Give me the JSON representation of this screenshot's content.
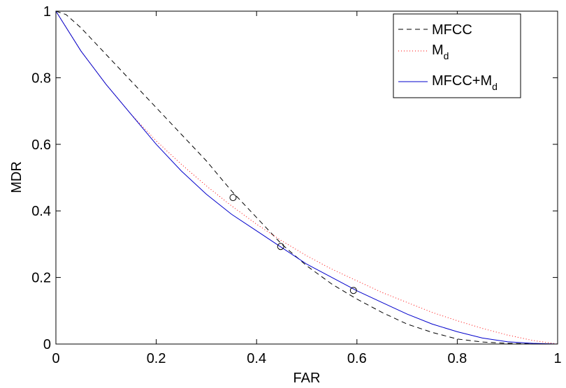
{
  "chart_data": {
    "type": "line",
    "xlabel": "FAR",
    "ylabel": "MDR",
    "xlim": [
      0,
      1
    ],
    "ylim": [
      0,
      1
    ],
    "xticks": [
      "0",
      "0.2",
      "0.4",
      "0.6",
      "0.8",
      "1"
    ],
    "yticks": [
      "0",
      "0.2",
      "0.4",
      "0.6",
      "0.8",
      "1"
    ],
    "legend_position": "top-right",
    "legend": [
      {
        "base": "MFCC",
        "sub": "",
        "suffix": ""
      },
      {
        "base": "M",
        "sub": "d",
        "suffix": ""
      },
      {
        "base": "MFCC+M",
        "sub": "d",
        "suffix": ""
      }
    ],
    "series": [
      {
        "name": "MFCC",
        "color": "#000000",
        "style": "dashed",
        "x": [
          0,
          0.02,
          0.05,
          0.1,
          0.15,
          0.2,
          0.25,
          0.3,
          0.35,
          0.4,
          0.45,
          0.5,
          0.55,
          0.6,
          0.65,
          0.7,
          0.75,
          0.8,
          0.85,
          0.9,
          0.95,
          1.0
        ],
        "y": [
          1.0,
          0.99,
          0.95,
          0.87,
          0.79,
          0.71,
          0.63,
          0.55,
          0.46,
          0.38,
          0.3,
          0.235,
          0.18,
          0.135,
          0.095,
          0.06,
          0.035,
          0.015,
          0.006,
          0.002,
          0.0005,
          0
        ]
      },
      {
        "name": "Md",
        "color": "#ff0000",
        "style": "dotted",
        "x": [
          0,
          0.05,
          0.1,
          0.15,
          0.2,
          0.25,
          0.3,
          0.35,
          0.4,
          0.45,
          0.5,
          0.55,
          0.6,
          0.65,
          0.7,
          0.75,
          0.8,
          0.85,
          0.9,
          0.95,
          1.0
        ],
        "y": [
          1.0,
          0.88,
          0.78,
          0.69,
          0.61,
          0.54,
          0.475,
          0.415,
          0.36,
          0.31,
          0.265,
          0.225,
          0.19,
          0.155,
          0.125,
          0.095,
          0.07,
          0.047,
          0.027,
          0.011,
          0
        ]
      },
      {
        "name": "MFCC+Md",
        "color": "#0000cc",
        "style": "solid",
        "x": [
          0,
          0.05,
          0.1,
          0.15,
          0.2,
          0.25,
          0.3,
          0.35,
          0.4,
          0.45,
          0.5,
          0.55,
          0.6,
          0.65,
          0.7,
          0.75,
          0.8,
          0.85,
          0.9,
          0.95,
          1.0
        ],
        "y": [
          1.0,
          0.88,
          0.78,
          0.69,
          0.6,
          0.52,
          0.45,
          0.39,
          0.34,
          0.29,
          0.24,
          0.2,
          0.16,
          0.125,
          0.09,
          0.06,
          0.037,
          0.018,
          0.007,
          0.002,
          0
        ]
      }
    ],
    "markers": [
      {
        "x": 0.353,
        "y": 0.44
      },
      {
        "x": 0.448,
        "y": 0.293
      },
      {
        "x": 0.593,
        "y": 0.161
      }
    ]
  }
}
